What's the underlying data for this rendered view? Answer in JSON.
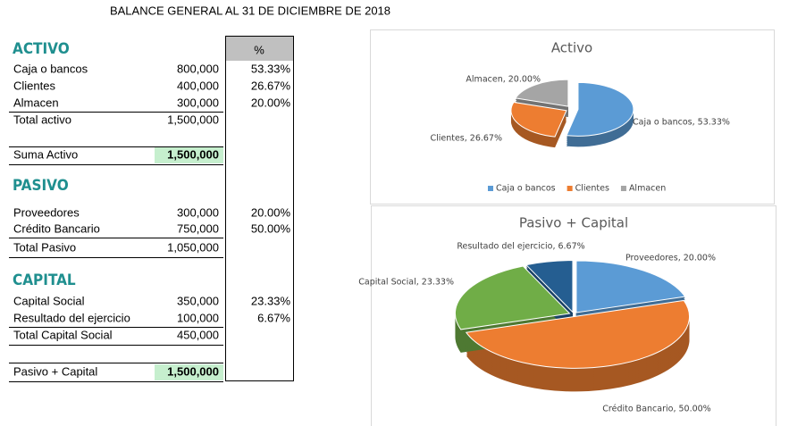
{
  "title": "BALANCE GENERAL AL 31 DE DICIEMBRE DE 2018",
  "table": {
    "percent_header": "%",
    "rows": [
      {
        "label": "ACTIVO"
      },
      {
        "label": "Caja o bancos",
        "amount": "800,000",
        "percent": "53.33%"
      },
      {
        "label": "Clientes",
        "amount": "400,000",
        "percent": "26.67%"
      },
      {
        "label": "Almacen",
        "amount": "300,000",
        "percent": "20.00%"
      },
      {
        "label": "Total activo",
        "amount": "1,500,000"
      },
      {
        "label": "Suma Activo",
        "amount": "1,500,000"
      },
      {
        "label": "PASIVO"
      },
      {
        "label": "Proveedores",
        "amount": "300,000",
        "percent": "20.00%"
      },
      {
        "label": "Crédito Bancario",
        "amount": "750,000",
        "percent": "50.00%"
      },
      {
        "label": "Total Pasivo",
        "amount": "1,050,000"
      },
      {
        "label": "CAPITAL"
      },
      {
        "label": "Capital Social",
        "amount": "350,000",
        "percent": "23.33%"
      },
      {
        "label": "Resultado del ejercicio",
        "amount": "100,000",
        "percent": "6.67%"
      },
      {
        "label": "Total Capital Social",
        "amount": "450,000"
      },
      {
        "label": "Pasivo + Capital",
        "amount": "1,500,000"
      }
    ]
  },
  "chart_data": [
    {
      "type": "pie",
      "title": "Activo",
      "categories": [
        "Caja o bancos",
        "Clientes",
        "Almacen"
      ],
      "values": [
        53.33,
        26.67,
        20.0
      ],
      "value_labels": [
        "Caja o bancos, 53.33%",
        "Clientes, 26.67%",
        "Almacen, 20.00%"
      ],
      "colors": [
        "#5b9bd5",
        "#ed7d31",
        "#a5a5a5"
      ],
      "legend": "bottom"
    },
    {
      "type": "pie",
      "title": "Pasivo + Capital",
      "categories": [
        "Proveedores",
        "Crédito Bancario",
        "Capital Social",
        "Resultado del ejercicio"
      ],
      "values": [
        20.0,
        50.0,
        23.33,
        6.67
      ],
      "value_labels": [
        "Proveedores, 20.00%",
        "Crédito Bancario, 50.00%",
        "Capital Social, 23.33%",
        "Resultado del ejercicio, 6.67%"
      ],
      "colors": [
        "#5b9bd5",
        "#ed7d31",
        "#70ad47",
        "#255e91"
      ]
    }
  ]
}
